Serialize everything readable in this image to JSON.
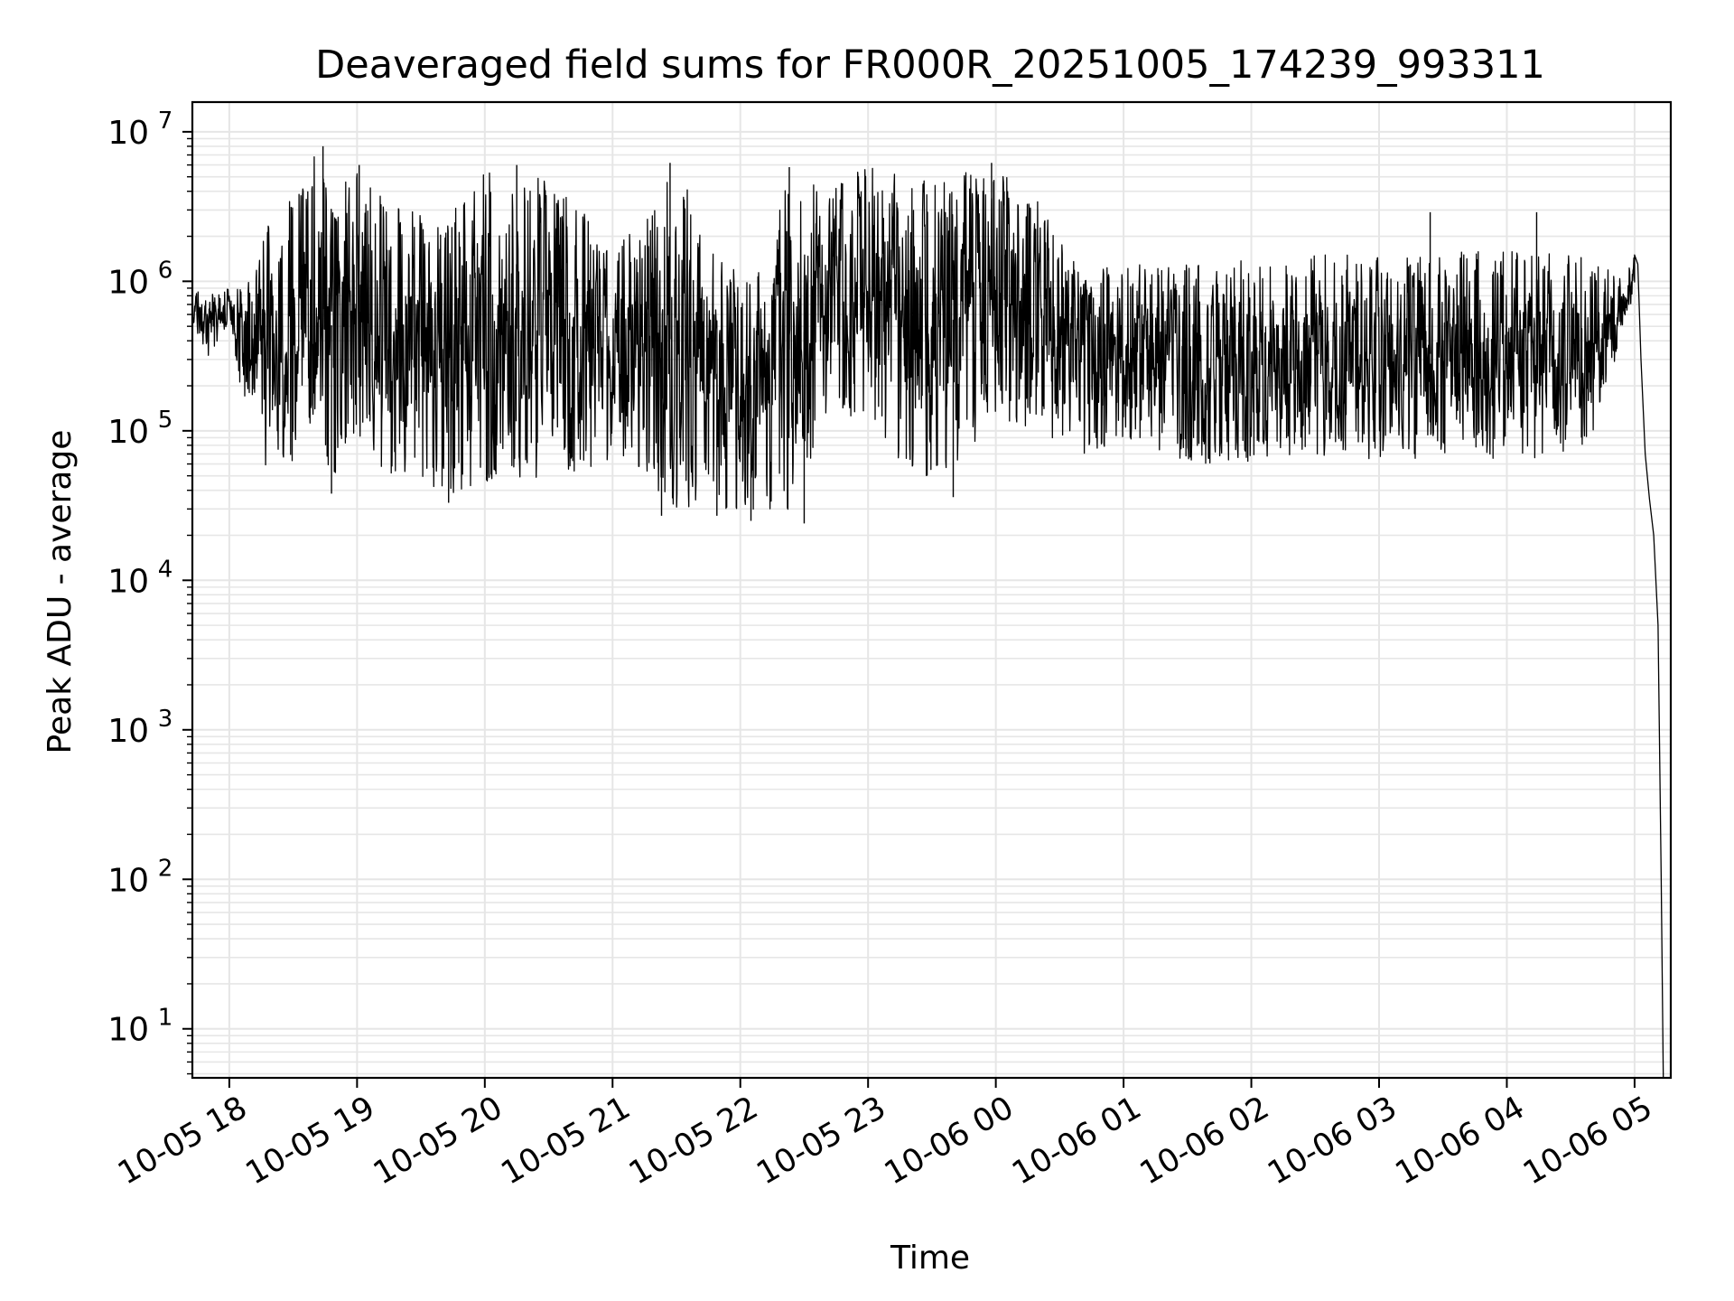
{
  "chart_data": {
    "type": "line",
    "title": "Deaveraged field sums for FR000R_20251005_174239_993311",
    "xlabel": "Time",
    "ylabel": "Peak ADU - average",
    "xscale": "time",
    "yscale": "log",
    "grid": true,
    "xlim": [
      "2025-10-05T17:42:39",
      "2025-10-06T05:17:00"
    ],
    "ylim": [
      4.7,
      15800000
    ],
    "x_ticks": [
      {
        "value": "2025-10-05T18:00:00",
        "label": "10-05 18"
      },
      {
        "value": "2025-10-05T19:00:00",
        "label": "10-05 19"
      },
      {
        "value": "2025-10-05T20:00:00",
        "label": "10-05 20"
      },
      {
        "value": "2025-10-05T21:00:00",
        "label": "10-05 21"
      },
      {
        "value": "2025-10-05T22:00:00",
        "label": "10-05 22"
      },
      {
        "value": "2025-10-05T23:00:00",
        "label": "10-05 23"
      },
      {
        "value": "2025-10-06T00:00:00",
        "label": "10-06 00"
      },
      {
        "value": "2025-10-06T01:00:00",
        "label": "10-06 01"
      },
      {
        "value": "2025-10-06T02:00:00",
        "label": "10-06 02"
      },
      {
        "value": "2025-10-06T03:00:00",
        "label": "10-06 03"
      },
      {
        "value": "2025-10-06T04:00:00",
        "label": "10-06 04"
      },
      {
        "value": "2025-10-06T05:00:00",
        "label": "10-06 05"
      }
    ],
    "y_ticks": [
      {
        "value": 10,
        "base": "10",
        "exp": "1"
      },
      {
        "value": 100,
        "base": "10",
        "exp": "2"
      },
      {
        "value": 1000,
        "base": "10",
        "exp": "3"
      },
      {
        "value": 10000,
        "base": "10",
        "exp": "4"
      },
      {
        "value": 100000,
        "base": "10",
        "exp": "5"
      },
      {
        "value": 1000000,
        "base": "10",
        "exp": "6"
      },
      {
        "value": 10000000,
        "base": "10",
        "exp": "7"
      }
    ],
    "series": [
      {
        "color": "#000000",
        "envelope_points": [
          {
            "x": "2025-10-05T17:42:39",
            "lo": 500000,
            "hi": 900000
          },
          {
            "x": "2025-10-05T17:50:00",
            "lo": 300000,
            "hi": 800000
          },
          {
            "x": "2025-10-05T18:00:00",
            "lo": 500000,
            "hi": 900000
          },
          {
            "x": "2025-10-05T18:10:00",
            "lo": 80000,
            "hi": 1000000
          },
          {
            "x": "2025-10-05T18:20:00",
            "lo": 50000,
            "hi": 3000000
          },
          {
            "x": "2025-10-05T18:30:00",
            "lo": 60000,
            "hi": 4000000
          },
          {
            "x": "2025-10-05T18:40:00",
            "lo": 100000,
            "hi": 7000000
          },
          {
            "x": "2025-10-05T18:50:00",
            "lo": 40000,
            "hi": 5000000
          },
          {
            "x": "2025-10-05T19:00:00",
            "lo": 60000,
            "hi": 5800000
          },
          {
            "x": "2025-10-05T19:20:00",
            "lo": 50000,
            "hi": 3500000
          },
          {
            "x": "2025-10-05T19:40:00",
            "lo": 35000,
            "hi": 2500000
          },
          {
            "x": "2025-10-05T20:00:00",
            "lo": 45000,
            "hi": 5500000
          },
          {
            "x": "2025-10-05T20:15:00",
            "lo": 40000,
            "hi": 5800000
          },
          {
            "x": "2025-10-05T20:40:00",
            "lo": 50000,
            "hi": 4000000
          },
          {
            "x": "2025-10-05T21:00:00",
            "lo": 60000,
            "hi": 1500000
          },
          {
            "x": "2025-10-05T21:30:00",
            "lo": 30000,
            "hi": 6000000
          },
          {
            "x": "2025-10-05T22:00:00",
            "lo": 30000,
            "hi": 1000000
          },
          {
            "x": "2025-10-05T22:25:00",
            "lo": 25000,
            "hi": 5500000
          },
          {
            "x": "2025-10-05T22:40:00",
            "lo": 120000,
            "hi": 4000000
          },
          {
            "x": "2025-10-05T23:00:00",
            "lo": 100000,
            "hi": 6000000
          },
          {
            "x": "2025-10-05T23:30:00",
            "lo": 40000,
            "hi": 5000000
          },
          {
            "x": "2025-10-06T00:00:00",
            "lo": 120000,
            "hi": 6000000
          },
          {
            "x": "2025-10-06T00:20:00",
            "lo": 100000,
            "hi": 3500000
          },
          {
            "x": "2025-10-06T00:40:00",
            "lo": 60000,
            "hi": 1200000
          },
          {
            "x": "2025-10-06T01:00:00",
            "lo": 90000,
            "hi": 1300000
          },
          {
            "x": "2025-10-06T01:20:00",
            "lo": 60000,
            "hi": 1300000
          },
          {
            "x": "2025-10-06T02:00:00",
            "lo": 60000,
            "hi": 1400000
          },
          {
            "x": "2025-10-06T02:30:00",
            "lo": 70000,
            "hi": 1500000
          },
          {
            "x": "2025-10-06T03:00:00",
            "lo": 60000,
            "hi": 1500000
          },
          {
            "x": "2025-10-06T03:30:00",
            "lo": 70000,
            "hi": 1600000
          },
          {
            "x": "2025-10-06T04:00:00",
            "lo": 60000,
            "hi": 1600000
          },
          {
            "x": "2025-10-06T04:40:00",
            "lo": 80000,
            "hi": 1500000
          },
          {
            "x": "2025-10-06T04:55:00",
            "lo": 500000,
            "hi": 1000000
          },
          {
            "x": "2025-10-06T05:00:00",
            "lo": 800000,
            "hi": 1600000
          }
        ],
        "spikes": [
          {
            "x": "2025-10-05T18:44:00",
            "y": 8000000
          },
          {
            "x": "2025-10-05T19:01:00",
            "y": 6000000
          },
          {
            "x": "2025-10-05T20:15:00",
            "y": 6000000
          },
          {
            "x": "2025-10-05T21:27:00",
            "y": 6200000
          },
          {
            "x": "2025-10-05T22:23:00",
            "y": 5800000
          },
          {
            "x": "2025-10-05T23:58:00",
            "y": 6200000
          },
          {
            "x": "2025-10-06T03:24:00",
            "y": 2900000
          },
          {
            "x": "2025-10-06T04:14:00",
            "y": 2900000
          },
          {
            "x": "2025-10-05T18:48:00",
            "y": 38000
          },
          {
            "x": "2025-10-05T19:43:00",
            "y": 33000
          },
          {
            "x": "2025-10-05T21:23:00",
            "y": 27000
          },
          {
            "x": "2025-10-05T21:49:00",
            "y": 27000
          },
          {
            "x": "2025-10-05T22:05:00",
            "y": 25000
          },
          {
            "x": "2025-10-05T22:30:00",
            "y": 24000
          },
          {
            "x": "2025-10-05T23:40:00",
            "y": 36000
          }
        ],
        "tail_points": [
          {
            "x": "2025-10-06T05:00:00",
            "y": 1500000
          },
          {
            "x": "2025-10-06T05:01:30",
            "y": 1300000
          },
          {
            "x": "2025-10-06T05:03:00",
            "y": 300000
          },
          {
            "x": "2025-10-06T05:05:00",
            "y": 70000
          },
          {
            "x": "2025-10-06T05:07:00",
            "y": 35000
          },
          {
            "x": "2025-10-06T05:09:00",
            "y": 20000
          },
          {
            "x": "2025-10-06T05:11:00",
            "y": 5000
          },
          {
            "x": "2025-10-06T05:12:30",
            "y": 100
          },
          {
            "x": "2025-10-06T05:13:30",
            "y": 4.7
          }
        ],
        "seed": 20251005
      }
    ]
  }
}
